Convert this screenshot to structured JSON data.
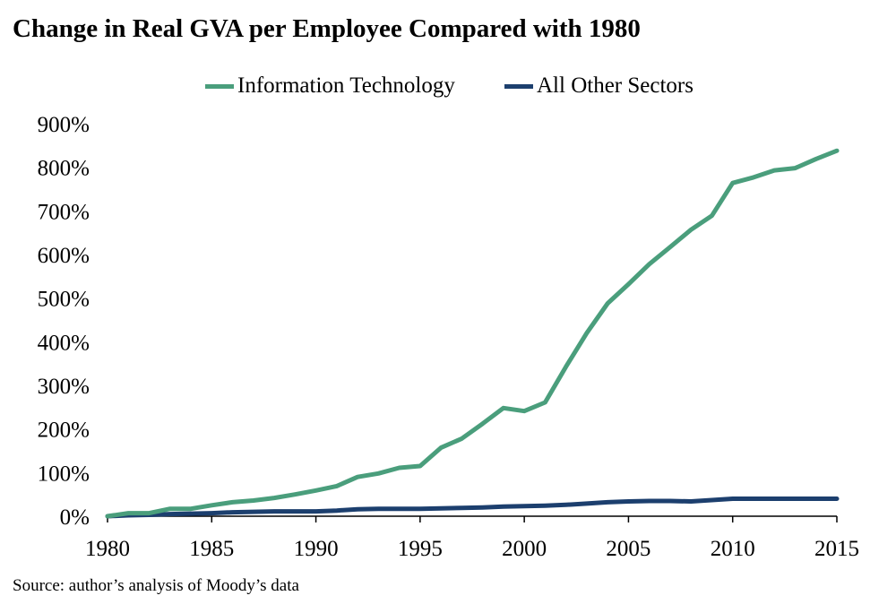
{
  "title": "Change in Real GVA per Employee Compared with 1980",
  "source": "Source: author’s analysis of Moody’s data",
  "legend": [
    {
      "label": "Information Technology",
      "color": "#4a9e7c"
    },
    {
      "label": "All Other Sectors",
      "color": "#1c3f6e"
    }
  ],
  "chart_data": {
    "type": "line",
    "title": "Change in Real GVA per Employee Compared with 1980",
    "xlabel": "",
    "ylabel": "",
    "xlim": [
      1980,
      2015
    ],
    "ylim": [
      0,
      900
    ],
    "x_ticks": [
      "1980",
      "1985",
      "1990",
      "1995",
      "2000",
      "2005",
      "2010",
      "2015"
    ],
    "y_ticks": [
      "0%",
      "100%",
      "200%",
      "300%",
      "400%",
      "500%",
      "600%",
      "700%",
      "800%",
      "900%"
    ],
    "grid": false,
    "legend_position": "top-center",
    "x": [
      1980,
      1981,
      1982,
      1983,
      1984,
      1985,
      1986,
      1987,
      1988,
      1989,
      1990,
      1991,
      1992,
      1993,
      1994,
      1995,
      1996,
      1997,
      1998,
      1999,
      2000,
      2001,
      2002,
      2003,
      2004,
      2005,
      2006,
      2007,
      2008,
      2009,
      2010,
      2011,
      2012,
      2013,
      2014,
      2015
    ],
    "series": [
      {
        "name": "Information Technology",
        "color": "#4a9e7c",
        "values": [
          0,
          7,
          7,
          17,
          17,
          25,
          32,
          36,
          42,
          50,
          59,
          69,
          90,
          98,
          111,
          115,
          157,
          178,
          212,
          248,
          241,
          261,
          343,
          420,
          488,
          532,
          578,
          617,
          657,
          689,
          764,
          777,
          793,
          798,
          819,
          838
        ]
      },
      {
        "name": "All Other Sectors",
        "color": "#1c3f6e",
        "values": [
          0,
          2,
          3,
          5,
          6,
          7,
          9,
          10,
          11,
          11,
          11,
          13,
          16,
          17,
          17,
          17,
          18,
          19,
          20,
          22,
          23,
          24,
          26,
          29,
          32,
          34,
          35,
          35,
          34,
          37,
          40,
          40,
          40,
          40,
          40,
          40
        ]
      }
    ]
  }
}
